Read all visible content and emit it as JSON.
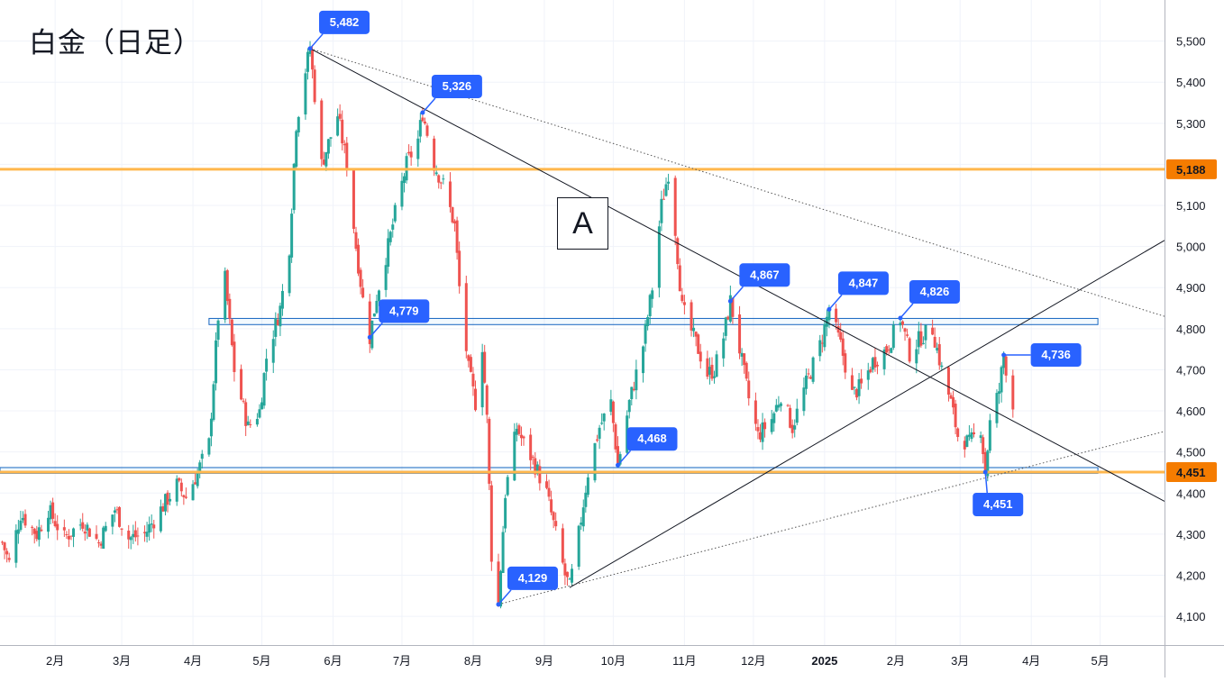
{
  "chart_data": {
    "type": "candlestick",
    "title": "白金（日足）",
    "annotation_label": "A",
    "y_axis": {
      "side": "right",
      "range": [
        4030,
        5600
      ],
      "ticks": [
        4100,
        4200,
        4300,
        4400,
        4500,
        4600,
        4700,
        4800,
        4900,
        5000,
        5100,
        5200,
        5300,
        5400,
        5500
      ]
    },
    "x_axis": {
      "range": [
        "2024-01-08",
        "2025-05-29"
      ],
      "ticks": [
        {
          "date": "2024-02-01",
          "label": "2月"
        },
        {
          "date": "2024-03-01",
          "label": "3月"
        },
        {
          "date": "2024-04-01",
          "label": "4月"
        },
        {
          "date": "2024-05-01",
          "label": "5月"
        },
        {
          "date": "2024-06-01",
          "label": "6月"
        },
        {
          "date": "2024-07-01",
          "label": "7月"
        },
        {
          "date": "2024-08-01",
          "label": "8月"
        },
        {
          "date": "2024-09-01",
          "label": "9月"
        },
        {
          "date": "2024-10-01",
          "label": "10月"
        },
        {
          "date": "2024-11-01",
          "label": "11月"
        },
        {
          "date": "2024-12-01",
          "label": "12月"
        },
        {
          "date": "2025-01-01",
          "label": "2025",
          "bold": true
        },
        {
          "date": "2025-02-01",
          "label": "2月"
        },
        {
          "date": "2025-03-01",
          "label": "3月"
        },
        {
          "date": "2025-04-01",
          "label": "4月"
        },
        {
          "date": "2025-05-01",
          "label": "5月"
        }
      ]
    },
    "grid": true,
    "colors": {
      "up": "#26a69a",
      "down": "#ef5350",
      "marker": "#2962ff",
      "level": "#ffb74d",
      "level_tag": "#f57c00",
      "zone": "#1565c0"
    },
    "price_path": [
      {
        "date": "2024-01-09",
        "price": 4280
      },
      {
        "date": "2024-01-12",
        "price": 4230
      },
      {
        "date": "2024-01-17",
        "price": 4350
      },
      {
        "date": "2024-01-24",
        "price": 4300
      },
      {
        "date": "2024-01-29",
        "price": 4360
      },
      {
        "date": "2024-02-05",
        "price": 4290
      },
      {
        "date": "2024-02-13",
        "price": 4330
      },
      {
        "date": "2024-02-20",
        "price": 4280
      },
      {
        "date": "2024-02-27",
        "price": 4360
      },
      {
        "date": "2024-03-04",
        "price": 4290
      },
      {
        "date": "2024-03-11",
        "price": 4300
      },
      {
        "date": "2024-03-18",
        "price": 4360
      },
      {
        "date": "2024-03-25",
        "price": 4420
      },
      {
        "date": "2024-03-29",
        "price": 4390
      },
      {
        "date": "2024-04-03",
        "price": 4450
      },
      {
        "date": "2024-04-08",
        "price": 4520
      },
      {
        "date": "2024-04-12",
        "price": 4830
      },
      {
        "date": "2024-04-15",
        "price": 4920
      },
      {
        "date": "2024-04-19",
        "price": 4700
      },
      {
        "date": "2024-04-25",
        "price": 4560
      },
      {
        "date": "2024-04-30",
        "price": 4600
      },
      {
        "date": "2024-05-03",
        "price": 4730
      },
      {
        "date": "2024-05-09",
        "price": 4850
      },
      {
        "date": "2024-05-13",
        "price": 5000
      },
      {
        "date": "2024-05-16",
        "price": 5300
      },
      {
        "date": "2024-05-20",
        "price": 5430
      },
      {
        "date": "2024-05-22",
        "price": 5482
      },
      {
        "date": "2024-05-27",
        "price": 5200
      },
      {
        "date": "2024-06-03",
        "price": 5320
      },
      {
        "date": "2024-06-07",
        "price": 5200
      },
      {
        "date": "2024-06-11",
        "price": 5000
      },
      {
        "date": "2024-06-14",
        "price": 4870
      },
      {
        "date": "2024-06-17",
        "price": 4779
      },
      {
        "date": "2024-06-20",
        "price": 4880
      },
      {
        "date": "2024-06-25",
        "price": 5000
      },
      {
        "date": "2024-06-28",
        "price": 5080
      },
      {
        "date": "2024-07-03",
        "price": 5200
      },
      {
        "date": "2024-07-08",
        "price": 5260
      },
      {
        "date": "2024-07-10",
        "price": 5326
      },
      {
        "date": "2024-07-15",
        "price": 5200
      },
      {
        "date": "2024-07-19",
        "price": 5150
      },
      {
        "date": "2024-07-24",
        "price": 5050
      },
      {
        "date": "2024-07-26",
        "price": 4900
      },
      {
        "date": "2024-07-30",
        "price": 4700
      },
      {
        "date": "2024-08-02",
        "price": 4620
      },
      {
        "date": "2024-08-05",
        "price": 4760
      },
      {
        "date": "2024-08-07",
        "price": 4580
      },
      {
        "date": "2024-08-09",
        "price": 4250
      },
      {
        "date": "2024-08-12",
        "price": 4129
      },
      {
        "date": "2024-08-15",
        "price": 4400
      },
      {
        "date": "2024-08-20",
        "price": 4560
      },
      {
        "date": "2024-08-23",
        "price": 4520
      },
      {
        "date": "2024-08-27",
        "price": 4480
      },
      {
        "date": "2024-09-02",
        "price": 4400
      },
      {
        "date": "2024-09-06",
        "price": 4300
      },
      {
        "date": "2024-09-10",
        "price": 4200
      },
      {
        "date": "2024-09-12",
        "price": 4170
      },
      {
        "date": "2024-09-16",
        "price": 4300
      },
      {
        "date": "2024-09-20",
        "price": 4450
      },
      {
        "date": "2024-09-25",
        "price": 4560
      },
      {
        "date": "2024-09-30",
        "price": 4620
      },
      {
        "date": "2024-10-03",
        "price": 4468
      },
      {
        "date": "2024-10-08",
        "price": 4620
      },
      {
        "date": "2024-10-14",
        "price": 4760
      },
      {
        "date": "2024-10-18",
        "price": 4900
      },
      {
        "date": "2024-10-22",
        "price": 5100
      },
      {
        "date": "2024-10-25",
        "price": 5180
      },
      {
        "date": "2024-10-28",
        "price": 5040
      },
      {
        "date": "2024-10-31",
        "price": 4850
      },
      {
        "date": "2024-11-05",
        "price": 4780
      },
      {
        "date": "2024-11-11",
        "price": 4690
      },
      {
        "date": "2024-11-14",
        "price": 4700
      },
      {
        "date": "2024-11-18",
        "price": 4780
      },
      {
        "date": "2024-11-21",
        "price": 4867
      },
      {
        "date": "2024-11-25",
        "price": 4750
      },
      {
        "date": "2024-11-29",
        "price": 4630
      },
      {
        "date": "2024-12-03",
        "price": 4540
      },
      {
        "date": "2024-12-09",
        "price": 4580
      },
      {
        "date": "2024-12-13",
        "price": 4640
      },
      {
        "date": "2024-12-18",
        "price": 4560
      },
      {
        "date": "2024-12-23",
        "price": 4650
      },
      {
        "date": "2024-12-30",
        "price": 4760
      },
      {
        "date": "2025-01-03",
        "price": 4847
      },
      {
        "date": "2025-01-08",
        "price": 4760
      },
      {
        "date": "2025-01-13",
        "price": 4640
      },
      {
        "date": "2025-01-17",
        "price": 4660
      },
      {
        "date": "2025-01-22",
        "price": 4720
      },
      {
        "date": "2025-01-28",
        "price": 4750
      },
      {
        "date": "2025-02-03",
        "price": 4826
      },
      {
        "date": "2025-02-07",
        "price": 4740
      },
      {
        "date": "2025-02-12",
        "price": 4780
      },
      {
        "date": "2025-02-17",
        "price": 4800
      },
      {
        "date": "2025-02-21",
        "price": 4700
      },
      {
        "date": "2025-02-25",
        "price": 4620
      },
      {
        "date": "2025-02-28",
        "price": 4540
      },
      {
        "date": "2025-03-05",
        "price": 4520
      },
      {
        "date": "2025-03-10",
        "price": 4560
      },
      {
        "date": "2025-03-12",
        "price": 4451
      },
      {
        "date": "2025-03-14",
        "price": 4570
      },
      {
        "date": "2025-03-18",
        "price": 4650
      },
      {
        "date": "2025-03-20",
        "price": 4736
      },
      {
        "date": "2025-03-24",
        "price": 4610
      }
    ],
    "markers": [
      {
        "date": "2024-05-22",
        "price": 5482,
        "label": "5,482",
        "position": "above"
      },
      {
        "date": "2024-07-10",
        "price": 5326,
        "label": "5,326",
        "position": "above"
      },
      {
        "date": "2024-06-17",
        "price": 4779,
        "label": "4,779",
        "position": "above"
      },
      {
        "date": "2024-08-12",
        "price": 4129,
        "label": "4,129",
        "position": "above"
      },
      {
        "date": "2024-10-03",
        "price": 4468,
        "label": "4,468",
        "position": "above"
      },
      {
        "date": "2024-11-21",
        "price": 4867,
        "label": "4,867",
        "position": "above"
      },
      {
        "date": "2025-01-03",
        "price": 4847,
        "label": "4,847",
        "position": "above"
      },
      {
        "date": "2025-02-03",
        "price": 4826,
        "label": "4,826",
        "position": "above"
      },
      {
        "date": "2025-03-20",
        "price": 4736,
        "label": "4,736",
        "position": "right"
      },
      {
        "date": "2025-03-12",
        "price": 4451,
        "label": "4,451",
        "position": "below"
      }
    ],
    "levels": [
      {
        "price": 5188,
        "label": "5,188"
      },
      {
        "price": 4451,
        "label": "4,451"
      }
    ],
    "zones": [
      {
        "from": "2024-04-08",
        "to": "2025-04-30",
        "low": 4810,
        "high": 4825
      },
      {
        "from": "2024-01-08",
        "to": "2025-04-30",
        "low": 4448,
        "high": 4462
      }
    ],
    "trendlines": [
      {
        "style": "solid",
        "from": {
          "date": "2024-05-22",
          "price": 5482
        },
        "to": {
          "date": "2025-05-29",
          "price": 4380
        }
      },
      {
        "style": "dotted",
        "from": {
          "date": "2024-05-22",
          "price": 5482
        },
        "to": {
          "date": "2025-05-29",
          "price": 4830
        }
      },
      {
        "style": "solid",
        "from": {
          "date": "2024-09-12",
          "price": 4170
        },
        "to": {
          "date": "2025-05-29",
          "price": 5015
        }
      },
      {
        "style": "dotted",
        "from": {
          "date": "2024-08-12",
          "price": 4129
        },
        "to": {
          "date": "2025-05-29",
          "price": 4550
        }
      }
    ]
  }
}
